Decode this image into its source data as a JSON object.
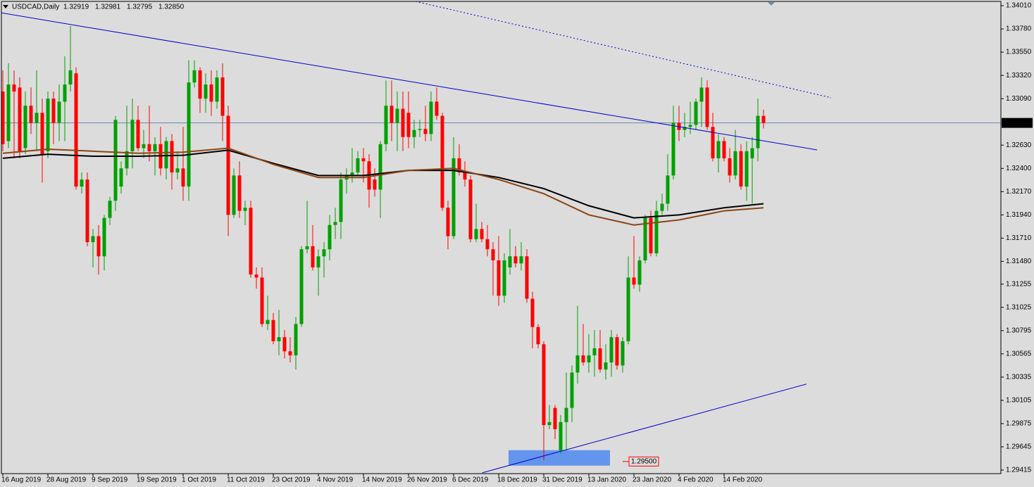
{
  "chart_data": {
    "type": "candlestick",
    "symbol": "USDCAD,Daily",
    "header_values": [
      1.32919,
      1.32981,
      1.32795,
      {
        "value": 1.3285,
        "label": "1.32850"
      }
    ],
    "categories": [
      "16 Aug 2019",
      null,
      null,
      null,
      null,
      null,
      null,
      null,
      "28 Aug 2019",
      null,
      null,
      null,
      null,
      null,
      null,
      null,
      "9 Sep 2019",
      null,
      null,
      null,
      null,
      null,
      null,
      null,
      "19 Sep 2019",
      null,
      null,
      null,
      null,
      null,
      null,
      null,
      "1 Oct 2019",
      null,
      null,
      null,
      null,
      null,
      null,
      null,
      "11 Oct 2019",
      null,
      null,
      null,
      null,
      null,
      null,
      null,
      "23 Oct 2019",
      null,
      null,
      null,
      null,
      null,
      null,
      null,
      "4 Nov 2019",
      null,
      null,
      null,
      null,
      null,
      null,
      null,
      "14 Nov 2019",
      null,
      null,
      null,
      null,
      null,
      null,
      null,
      "26 Nov 2019",
      null,
      null,
      null,
      null,
      null,
      null,
      null,
      "6 Dec 2019",
      null,
      null,
      null,
      null,
      null,
      null,
      null,
      "18 Dec 2019",
      null,
      null,
      null,
      null,
      null,
      null,
      null,
      "31 Dec 2019",
      null,
      null,
      null,
      null,
      null,
      null,
      null,
      "13 Jan 2020",
      null,
      null,
      null,
      null,
      null,
      null,
      null,
      "23 Jan 2020",
      null,
      null,
      null,
      null,
      null,
      null,
      null,
      "4 Feb 2020",
      null,
      null,
      null,
      null,
      null,
      null,
      null,
      "14 Feb 2020",
      null,
      null,
      null,
      null,
      null,
      null,
      null
    ],
    "open": [
      1.3316,
      1.3267,
      1.3323,
      1.332,
      1.326,
      1.3302,
      1.3285,
      1.3295,
      1.3257,
      1.3309,
      1.3285,
      1.3306,
      1.3323,
      1.3334,
      1.3222,
      1.3229,
      1.3167,
      1.3173,
      1.3153,
      1.3191,
      1.3208,
      1.3222,
      1.324,
      1.3257,
      1.3288,
      1.326,
      1.3264,
      1.3257,
      1.3264,
      1.324,
      1.3267,
      1.3236,
      1.324,
      1.3222,
      1.3325,
      1.3337,
      1.3309,
      1.3323,
      1.3306,
      1.333,
      1.3292,
      1.3194,
      1.3233,
      1.3198,
      1.3201,
      1.3135,
      1.3132,
      1.3086,
      1.309,
      1.3069,
      1.3073,
      1.3059,
      1.3055,
      1.3086,
      1.316,
      1.3163,
      1.3142,
      1.3153,
      1.316,
      1.3184,
      1.3187,
      1.3229,
      1.3233,
      1.3236,
      1.325,
      1.3247,
      1.3229,
      1.3219,
      1.3264,
      1.3302,
      1.3285,
      1.3299,
      1.3295,
      1.3271,
      1.3278,
      1.3279,
      1.3274,
      1.3306,
      1.3292,
      1.3201,
      1.3173,
      1.325,
      1.3236,
      1.3229,
      1.317,
      1.318,
      1.317,
      1.316,
      1.3149,
      1.3114,
      1.3142,
      1.3153,
      1.3146,
      1.3153,
      1.3111,
      1.3083,
      1.3066,
      1.2986,
      1.3003,
      1.2961,
      1.2989,
      1.3003,
      1.3038,
      1.3055,
      1.3048,
      1.3055,
      1.3062,
      1.3041,
      1.3048,
      1.3073,
      1.3045,
      1.3069,
      1.3132,
      1.3125,
      1.3149,
      1.3191,
      1.3156,
      1.3198,
      1.3205,
      1.3233,
      1.3285,
      1.3278,
      1.3281,
      1.3283,
      1.3306,
      1.332,
      1.3281,
      1.325,
      1.3267,
      1.325,
      1.3233,
      1.3257,
      1.3222,
      1.325,
      1.326,
      1.32919
    ],
    "high": [
      1.3337,
      1.3344,
      1.3337,
      1.333,
      1.3316,
      1.332,
      1.3337,
      1.3309,
      1.3316,
      1.3316,
      1.3323,
      1.3351,
      1.3381,
      1.334,
      1.3236,
      1.3236,
      1.318,
      1.3184,
      1.3194,
      1.3212,
      1.3292,
      1.3247,
      1.3302,
      1.3309,
      1.3302,
      1.3278,
      1.3302,
      1.3271,
      1.3281,
      1.3271,
      1.3274,
      1.3257,
      1.3281,
      1.3347,
      1.3347,
      1.334,
      1.3334,
      1.3337,
      1.3337,
      1.3344,
      1.3302,
      1.324,
      1.3247,
      1.3208,
      1.3208,
      1.3142,
      1.3142,
      1.3114,
      1.3097,
      1.31,
      1.308,
      1.3073,
      1.3093,
      1.3163,
      1.3208,
      1.3184,
      1.316,
      1.3167,
      1.3194,
      1.3201,
      1.3236,
      1.324,
      1.326,
      1.3257,
      1.326,
      1.3254,
      1.324,
      1.3267,
      1.3327,
      1.3327,
      1.3316,
      1.3316,
      1.3316,
      1.3288,
      1.3288,
      1.3302,
      1.3316,
      1.332,
      1.3295,
      1.3208,
      1.3271,
      1.3264,
      1.3247,
      1.3233,
      1.3205,
      1.3187,
      1.3184,
      1.3167,
      1.3173,
      1.3156,
      1.318,
      1.3163,
      1.3167,
      1.316,
      1.3118,
      1.3086,
      1.3069,
      1.3006,
      1.3006,
      1.2996,
      1.3038,
      1.3045,
      1.3104,
      1.3086,
      1.3076,
      1.308,
      1.308,
      1.3066,
      1.308,
      1.3076,
      1.3073,
      1.3153,
      1.3173,
      1.3153,
      1.3194,
      1.3198,
      1.3208,
      1.3215,
      1.3254,
      1.3302,
      1.3302,
      1.3295,
      1.3306,
      1.3309,
      1.333,
      1.3327,
      1.3295,
      1.3274,
      1.3271,
      1.326,
      1.3278,
      1.3264,
      1.3267,
      1.3271,
      1.3309,
      1.32981
    ],
    "low": [
      1.3257,
      1.326,
      1.325,
      1.325,
      1.3254,
      1.3274,
      1.3257,
      1.3226,
      1.325,
      1.3264,
      1.3267,
      1.3267,
      1.3316,
      1.3219,
      1.3215,
      1.3163,
      1.3142,
      1.3135,
      1.3139,
      1.3184,
      1.3198,
      1.3215,
      1.3233,
      1.324,
      1.3257,
      1.325,
      1.3247,
      1.3233,
      1.3233,
      1.3229,
      1.3219,
      1.3229,
      1.3208,
      1.3208,
      1.332,
      1.3295,
      1.3295,
      1.3292,
      1.3299,
      1.3267,
      1.3173,
      1.3191,
      1.3191,
      1.3184,
      1.3132,
      1.3121,
      1.3083,
      1.308,
      1.3066,
      1.3055,
      1.3052,
      1.3048,
      1.3041,
      1.3083,
      1.3156,
      1.3139,
      1.3114,
      1.3132,
      1.3149,
      1.317,
      1.317,
      1.3215,
      1.3226,
      1.3233,
      1.3226,
      1.3201,
      1.3212,
      1.3191,
      1.3257,
      1.3267,
      1.3257,
      1.3257,
      1.326,
      1.326,
      1.3271,
      1.3267,
      1.3267,
      1.3288,
      1.3198,
      1.316,
      1.317,
      1.3233,
      1.3222,
      1.3167,
      1.3167,
      1.3167,
      1.3153,
      1.3114,
      1.3104,
      1.3107,
      1.3135,
      1.3142,
      1.3139,
      1.3107,
      1.3062,
      1.3062,
      1.2951,
      1.2982,
      1.2972,
      1.2958,
      1.2961,
      1.2989,
      1.3027,
      1.3045,
      1.3038,
      1.3034,
      1.3038,
      1.3031,
      1.3034,
      1.3041,
      1.3038,
      1.3066,
      1.3121,
      1.3118,
      1.3146,
      1.3153,
      1.3153,
      1.3194,
      1.3198,
      1.3229,
      1.3267,
      1.3271,
      1.3274,
      1.3278,
      1.3281,
      1.3278,
      1.3247,
      1.3236,
      1.3247,
      1.3226,
      1.3229,
      1.3219,
      1.3208,
      1.3205,
      1.3247,
      1.32795
    ],
    "close": [
      1.3264,
      1.3323,
      1.3316,
      1.3257,
      1.3302,
      1.3285,
      1.3295,
      1.3254,
      1.3309,
      1.3285,
      1.3306,
      1.3323,
      1.3337,
      1.3222,
      1.3229,
      1.3167,
      1.3173,
      1.3153,
      1.3191,
      1.3208,
      1.3288,
      1.324,
      1.3257,
      1.3288,
      1.326,
      1.3264,
      1.3257,
      1.3264,
      1.324,
      1.3267,
      1.3236,
      1.324,
      1.3222,
      1.3325,
      1.3337,
      1.3309,
      1.3323,
      1.3306,
      1.333,
      1.3292,
      1.3194,
      1.3233,
      1.3198,
      1.3201,
      1.3135,
      1.3132,
      1.3086,
      1.309,
      1.3069,
      1.3073,
      1.3059,
      1.3055,
      1.3086,
      1.316,
      1.3163,
      1.3142,
      1.3153,
      1.316,
      1.3184,
      1.3187,
      1.3229,
      1.3233,
      1.3236,
      1.325,
      1.3247,
      1.3219,
      1.3219,
      1.3264,
      1.3302,
      1.3285,
      1.3299,
      1.3271,
      1.3271,
      1.3278,
      1.3279,
      1.3274,
      1.3306,
      1.3292,
      1.3201,
      1.3173,
      1.325,
      1.3236,
      1.3229,
      1.317,
      1.318,
      1.317,
      1.316,
      1.3149,
      1.3114,
      1.3149,
      1.3153,
      1.3146,
      1.3153,
      1.3111,
      1.3083,
      1.3066,
      1.2986,
      1.2989,
      1.2982,
      1.2989,
      1.3003,
      1.3038,
      1.3055,
      1.3048,
      1.3055,
      1.3062,
      1.3041,
      1.3048,
      1.3073,
      1.3045,
      1.3069,
      1.3132,
      1.3125,
      1.3149,
      1.3191,
      1.3156,
      1.3198,
      1.3205,
      1.3233,
      1.3285,
      1.3278,
      1.3281,
      1.3283,
      1.3306,
      1.332,
      1.3281,
      1.325,
      1.3267,
      1.325,
      1.3233,
      1.3257,
      1.3222,
      1.3257,
      1.326,
      1.3292,
      1.3285
    ],
    "up_color": "#00a000",
    "down_color": "#ff0000",
    "ylim": [
      1.2938,
      1.34052
    ],
    "yticks": [
      {
        "value": 1.3401,
        "label": "1.34010"
      },
      {
        "value": 1.3378,
        "label": "1.33780"
      },
      {
        "value": 1.3355,
        "label": "1.33550"
      },
      {
        "value": 1.3332,
        "label": "1.33320"
      },
      {
        "value": 1.3309,
        "label": "1.33090"
      },
      {
        "value": 1.3263,
        "label": "1.32630"
      },
      {
        "value": 1.324,
        "label": "1.32400"
      },
      {
        "value": 1.3217,
        "label": "1.32170"
      },
      {
        "value": 1.3194,
        "label": "1.31940"
      },
      {
        "value": 1.3171,
        "label": "1.31710"
      },
      {
        "value": 1.3148,
        "label": "1.31480"
      },
      1.31255,
      1.31025,
      1.30795,
      1.30565,
      1.30335,
      1.30105,
      1.29875,
      1.29645,
      1.29415
    ],
    "moving_averages": [
      {
        "color": "#000000",
        "x": [
          0,
          8,
          16,
          24,
          32,
          40,
          48,
          56,
          64,
          72,
          80,
          88,
          96,
          104,
          112,
          120,
          128,
          135
        ],
        "values": [
          1.325,
          1.3254,
          1.3252,
          1.3252,
          1.3253,
          1.3258,
          1.3245,
          1.3233,
          1.3233,
          1.3238,
          1.3238,
          1.3231,
          1.322,
          1.3203,
          1.3191,
          1.3194,
          1.3201,
          1.3205
        ]
      },
      {
        "color": "#8b4513",
        "x": [
          0,
          8,
          16,
          24,
          32,
          40,
          48,
          56,
          64,
          72,
          80,
          88,
          96,
          104,
          112,
          120,
          128,
          135
        ],
        "values": [
          1.3255,
          1.3259,
          1.3257,
          1.3255,
          1.3256,
          1.326,
          1.3244,
          1.3231,
          1.3231,
          1.3238,
          1.324,
          1.3229,
          1.3215,
          1.3194,
          1.3184,
          1.3189,
          1.3198,
          1.3201
        ]
      }
    ],
    "trendlines": [
      {
        "color": "#0000cd",
        "style": "solid",
        "x": [
          -0.5,
          144.5
        ],
        "values": [
          1.33941,
          1.32583
        ]
      },
      {
        "color": "#0000cd",
        "style": "dotted",
        "x": [
          73.25,
          147
        ],
        "values": [
          1.34052,
          1.33099
        ]
      },
      {
        "color": "#0000cd",
        "style": "solid",
        "x": [
          85.1,
          142.6
        ],
        "values": [
          1.29389,
          1.30266
        ]
      }
    ],
    "current_price": {
      "value": 1.3285,
      "label": "1.32850",
      "color": "#6b86b0"
    },
    "zone": {
      "color": "#6495ed",
      "x": [
        89.75,
        107.75
      ],
      "values": [
        1.29612,
        1.29459
      ],
      "label": {
        "value": 1.295,
        "label": "1.29500"
      }
    }
  }
}
